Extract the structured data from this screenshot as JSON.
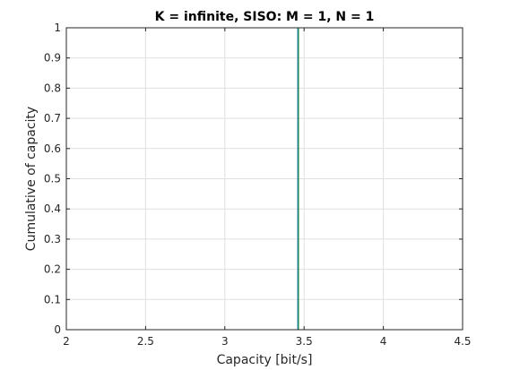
{
  "chart_data": {
    "type": "line",
    "title": "K = infinite, SISO: M = 1, N = 1",
    "xlabel": "Capacity [bit/s]",
    "ylabel": "Cumulative of capacity",
    "xlim": [
      2,
      4.5
    ],
    "ylim": [
      0,
      1
    ],
    "xticks": [
      "2",
      "2.5",
      "3",
      "3.5",
      "4",
      "4.5"
    ],
    "yticks": [
      "0",
      "0.1",
      "0.2",
      "0.3",
      "0.4",
      "0.5",
      "0.6",
      "0.7",
      "0.8",
      "0.9",
      "1"
    ],
    "grid": true,
    "series": [
      {
        "x": [
          3.46,
          3.46
        ],
        "y": [
          0,
          1
        ],
        "color": "#0072bd"
      },
      {
        "x": [
          3.465,
          3.465
        ],
        "y": [
          0,
          1
        ],
        "color": "#228b22"
      }
    ]
  }
}
